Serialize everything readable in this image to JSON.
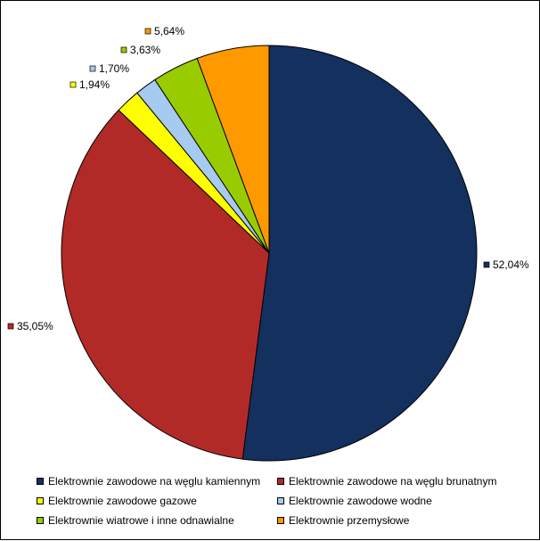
{
  "chart_data": {
    "type": "pie",
    "title": "",
    "legend_position": "bottom",
    "slices": [
      {
        "name": "Elektrownie zawodowe na węglu kamiennym",
        "value": 52.04,
        "label": "52,04%",
        "color": "#13305F"
      },
      {
        "name": "Elektrownie zawodowe na węglu brunatnym",
        "value": 35.05,
        "label": "35,05%",
        "color": "#B22A27"
      },
      {
        "name": "Elektrownie zawodowe gazowe",
        "value": 1.94,
        "label": "1,94%",
        "color": "#FFFF00"
      },
      {
        "name": "Elektrownie zawodowe wodne",
        "value": 1.7,
        "label": "1,70%",
        "color": "#A6CAF0"
      },
      {
        "name": "Elektrownie wiatrowe i inne odnawialne",
        "value": 3.63,
        "label": "3,63%",
        "color": "#99CC00"
      },
      {
        "name": "Elektrownie  przemysłowe",
        "value": 5.64,
        "label": "5,64%",
        "color": "#FF9900"
      }
    ]
  }
}
